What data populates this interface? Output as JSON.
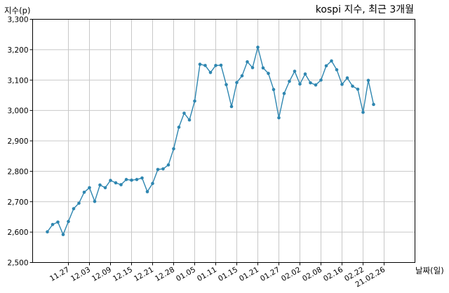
{
  "chart_data": {
    "type": "line",
    "title": "kospi 지수, 최근 3개월",
    "xlabel": "날짜(일)",
    "ylabel": "지수(p)",
    "ylim": [
      2500,
      3300
    ],
    "y_ticks": [
      2500,
      2600,
      2700,
      2800,
      2900,
      3000,
      3100,
      3200,
      3300
    ],
    "y_tick_labels": [
      "2,500",
      "2,600",
      "2,700",
      "2,800",
      "2,900",
      "3,000",
      "3,100",
      "3,200",
      "3,300"
    ],
    "x_ticks": [
      {
        "index": 4,
        "label": "11.27"
      },
      {
        "index": 8,
        "label": "12.03"
      },
      {
        "index": 12,
        "label": "12.09"
      },
      {
        "index": 16,
        "label": "12.15"
      },
      {
        "index": 20,
        "label": "12.21"
      },
      {
        "index": 24,
        "label": "12.28"
      },
      {
        "index": 28,
        "label": "01.05"
      },
      {
        "index": 32,
        "label": "01.11"
      },
      {
        "index": 36,
        "label": "01.15"
      },
      {
        "index": 40,
        "label": "01.21"
      },
      {
        "index": 44,
        "label": "01.27"
      },
      {
        "index": 48,
        "label": "02.02"
      },
      {
        "index": 52,
        "label": "02.08"
      },
      {
        "index": 56,
        "label": "02.16"
      },
      {
        "index": 60,
        "label": "02.22"
      },
      {
        "index": 64,
        "label": "21.02.26"
      }
    ],
    "grid": true,
    "series": [
      {
        "color": "#2e86b0",
        "values": [
          2601,
          2625,
          2633,
          2592,
          2635,
          2677,
          2695,
          2731,
          2746,
          2701,
          2755,
          2746,
          2770,
          2762,
          2756,
          2773,
          2771,
          2773,
          2778,
          2733,
          2760,
          2806,
          2808,
          2821,
          2874,
          2945,
          2991,
          2969,
          3031,
          3152,
          3148,
          3125,
          3148,
          3149,
          3085,
          3013,
          3092,
          3114,
          3160,
          3141,
          3208,
          3140,
          3122,
          3069,
          2976,
          3056,
          3096,
          3129,
          3087,
          3120,
          3091,
          3084,
          3100,
          3147,
          3163,
          3134,
          3086,
          3107,
          3080,
          3070,
          2994,
          3099,
          3020
        ]
      }
    ]
  }
}
